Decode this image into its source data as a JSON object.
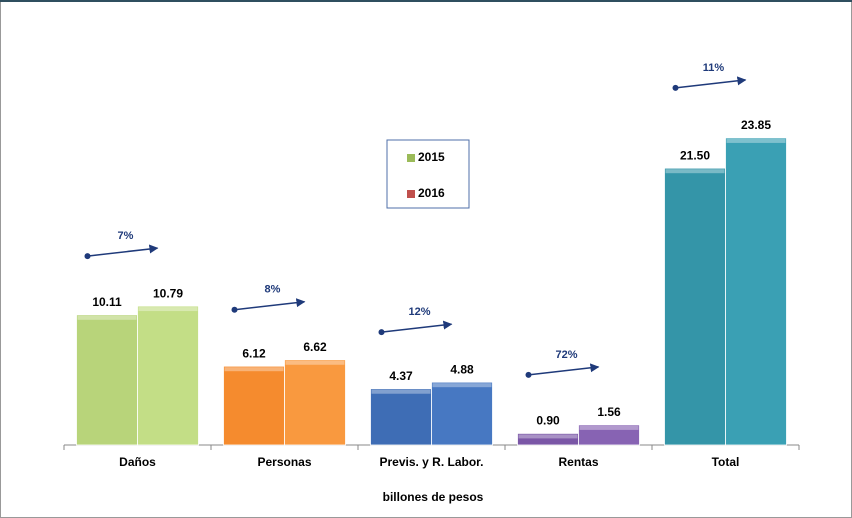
{
  "chart_data": {
    "type": "bar",
    "categories": [
      "Daños",
      "Personas",
      "Previs. y R. Labor.",
      "Rentas",
      "Total"
    ],
    "series": [
      {
        "name": "2015",
        "color": "#9bbb59",
        "values": [
          10.11,
          6.12,
          4.37,
          0.9,
          21.5
        ],
        "value_labels": [
          "10.11",
          "6.12",
          "4.37",
          "0.90",
          "21.50"
        ]
      },
      {
        "name": "2016",
        "color": "#c0504d",
        "values": [
          10.79,
          6.62,
          4.88,
          1.56,
          23.85
        ],
        "value_labels": [
          "10.79",
          "6.62",
          "4.88",
          "1.56",
          "23.85"
        ]
      }
    ],
    "bar_colors": [
      [
        "#b8d47a",
        "#c3de86"
      ],
      [
        "#f58b2e",
        "#f9993f"
      ],
      [
        "#3e6db5",
        "#4778c2"
      ],
      [
        "#7a56a6",
        "#8763b3"
      ],
      [
        "#3495a8",
        "#3aa0b4"
      ]
    ],
    "annotations": [
      "7%",
      "8%",
      "12%",
      "72%",
      "11%"
    ],
    "xlabel": "billones de pesos",
    "ylim": [
      0,
      24
    ]
  }
}
